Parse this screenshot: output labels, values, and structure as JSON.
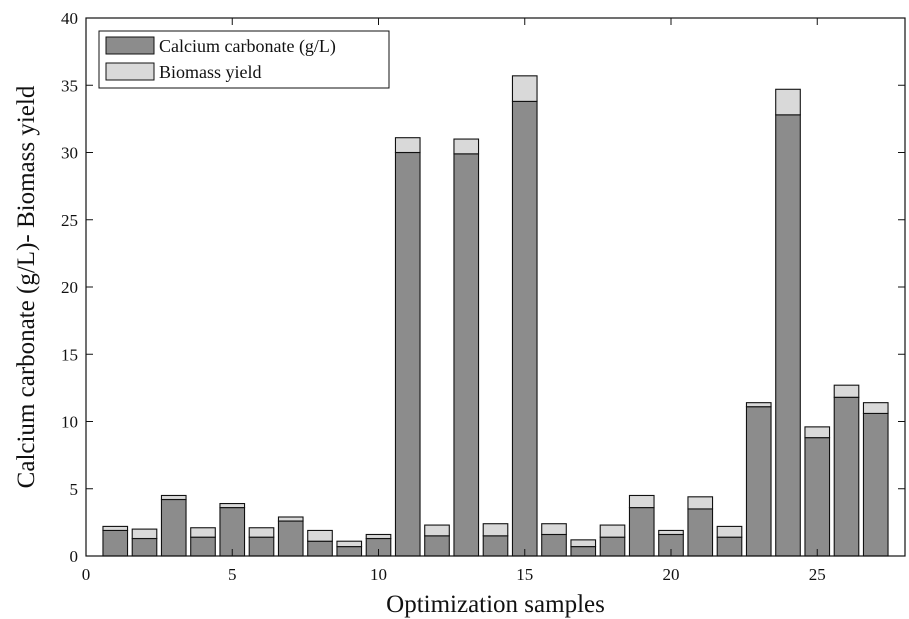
{
  "chart_data": {
    "type": "bar",
    "stacked": true,
    "xlabel": "Optimization samples",
    "ylabel": "Calcium carbonate (g/L)- Biomass yield",
    "xlim": [
      0,
      28
    ],
    "ylim": [
      0,
      40
    ],
    "x_ticks": [
      0,
      5,
      10,
      15,
      20,
      25
    ],
    "y_ticks": [
      0,
      5,
      10,
      15,
      20,
      25,
      30,
      35,
      40
    ],
    "grid": false,
    "legend_position": "top-left",
    "categories": [
      1,
      2,
      3,
      4,
      5,
      6,
      7,
      8,
      9,
      10,
      11,
      12,
      13,
      14,
      15,
      16,
      17,
      18,
      19,
      20,
      21,
      22,
      23,
      24,
      25,
      26,
      27
    ],
    "series": [
      {
        "name": "Calcium carbonate (g/L)",
        "color": "#8c8c8c",
        "values": [
          1.9,
          1.3,
          4.2,
          1.4,
          3.6,
          1.4,
          2.6,
          1.1,
          0.7,
          1.3,
          30.0,
          1.5,
          29.9,
          1.5,
          33.8,
          1.6,
          0.7,
          1.4,
          3.6,
          1.6,
          3.5,
          1.4,
          11.1,
          32.8,
          8.8,
          11.8,
          10.6
        ]
      },
      {
        "name": "Biomass yield",
        "color": "#d9d9d9",
        "values": [
          0.3,
          0.7,
          0.3,
          0.7,
          0.3,
          0.7,
          0.3,
          0.8,
          0.4,
          0.3,
          1.1,
          0.8,
          1.1,
          0.9,
          1.9,
          0.8,
          0.5,
          0.9,
          0.9,
          0.3,
          0.9,
          0.8,
          0.3,
          1.9,
          0.8,
          0.9,
          0.8
        ]
      }
    ]
  }
}
